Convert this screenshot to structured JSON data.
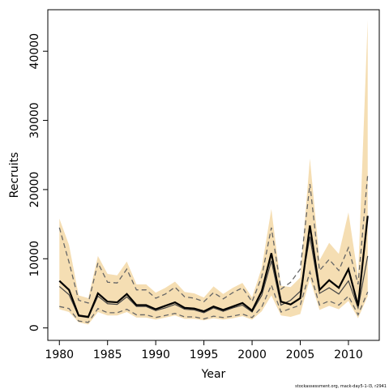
{
  "chart_data": {
    "type": "line",
    "xlabel": "Year",
    "ylabel": "Recruits",
    "xlim": [
      1978.8,
      2013.2
    ],
    "ylim": [
      -1800,
      46000
    ],
    "x_ticks": [
      1980,
      1985,
      1990,
      1995,
      2000,
      2005,
      2010
    ],
    "y_ticks": [
      0,
      10000,
      20000,
      30000,
      40000
    ],
    "grid": false,
    "legend": "none",
    "x": [
      1980,
      1981,
      1982,
      1983,
      1984,
      1985,
      1986,
      1987,
      1988,
      1989,
      1990,
      1991,
      1992,
      1993,
      1994,
      1995,
      1996,
      1997,
      1998,
      1999,
      2000,
      2001,
      2002,
      2003,
      2004,
      2005,
      2006,
      2007,
      2008,
      2009,
      2010,
      2011,
      2012
    ],
    "series": [
      {
        "role": "estimate",
        "color": "#000000",
        "values": [
          6800,
          5500,
          1800,
          1600,
          5000,
          3800,
          3700,
          4900,
          3300,
          3300,
          2700,
          3200,
          3700,
          2900,
          2800,
          2400,
          3100,
          2600,
          3100,
          3600,
          2500,
          5300,
          10800,
          3800,
          3400,
          4300,
          14800,
          5500,
          6900,
          5800,
          8500,
          3200,
          16200
        ]
      },
      {
        "role": "shaded interval",
        "color": "#f5deb3",
        "lower": [
          2700,
          2300,
          800,
          500,
          2300,
          1800,
          1800,
          2300,
          1500,
          1500,
          1200,
          1500,
          1800,
          1300,
          1300,
          1100,
          1400,
          1200,
          1400,
          1700,
          1200,
          2400,
          4700,
          1800,
          1600,
          2000,
          7100,
          2600,
          3200,
          2700,
          3900,
          1400,
          4600
        ],
        "upper": [
          15800,
          12000,
          4700,
          4300,
          10400,
          7800,
          7600,
          9600,
          6300,
          6300,
          5100,
          5800,
          6700,
          5200,
          5000,
          4400,
          6000,
          4900,
          5800,
          6500,
          4400,
          8700,
          17200,
          6100,
          5900,
          7300,
          24500,
          9800,
          12300,
          10700,
          16700,
          7400,
          44500
        ]
      },
      {
        "role": "dashed interval",
        "color": "#666666",
        "lower": [
          3100,
          2800,
          1000,
          800,
          2800,
          2200,
          2200,
          2700,
          1900,
          1900,
          1500,
          1800,
          2100,
          1600,
          1600,
          1300,
          1700,
          1500,
          1700,
          2000,
          1500,
          3000,
          6200,
          2300,
          2800,
          3300,
          8100,
          3300,
          3900,
          3300,
          4600,
          1900,
          5200
        ],
        "upper": [
          14500,
          9500,
          4000,
          3600,
          9400,
          6600,
          6500,
          8500,
          5500,
          5500,
          4300,
          4900,
          5900,
          4500,
          4300,
          3800,
          5100,
          4200,
          5100,
          5800,
          3800,
          7400,
          14500,
          5600,
          6600,
          8500,
          20800,
          8300,
          9900,
          8300,
          11600,
          6300,
          22200
        ]
      },
      {
        "role": "median",
        "color": "#444444",
        "values": [
          6000,
          4800,
          1700,
          1500,
          4600,
          3500,
          3400,
          4500,
          3100,
          3100,
          2500,
          2900,
          3400,
          2700,
          2600,
          2200,
          2900,
          2400,
          2900,
          3300,
          2300,
          4700,
          9700,
          3300,
          4000,
          5300,
          13200,
          5000,
          5800,
          4900,
          6800,
          2900,
          10400
        ]
      }
    ]
  },
  "footer": "stockassessment.org, mack-day5-1-l3, r2941"
}
